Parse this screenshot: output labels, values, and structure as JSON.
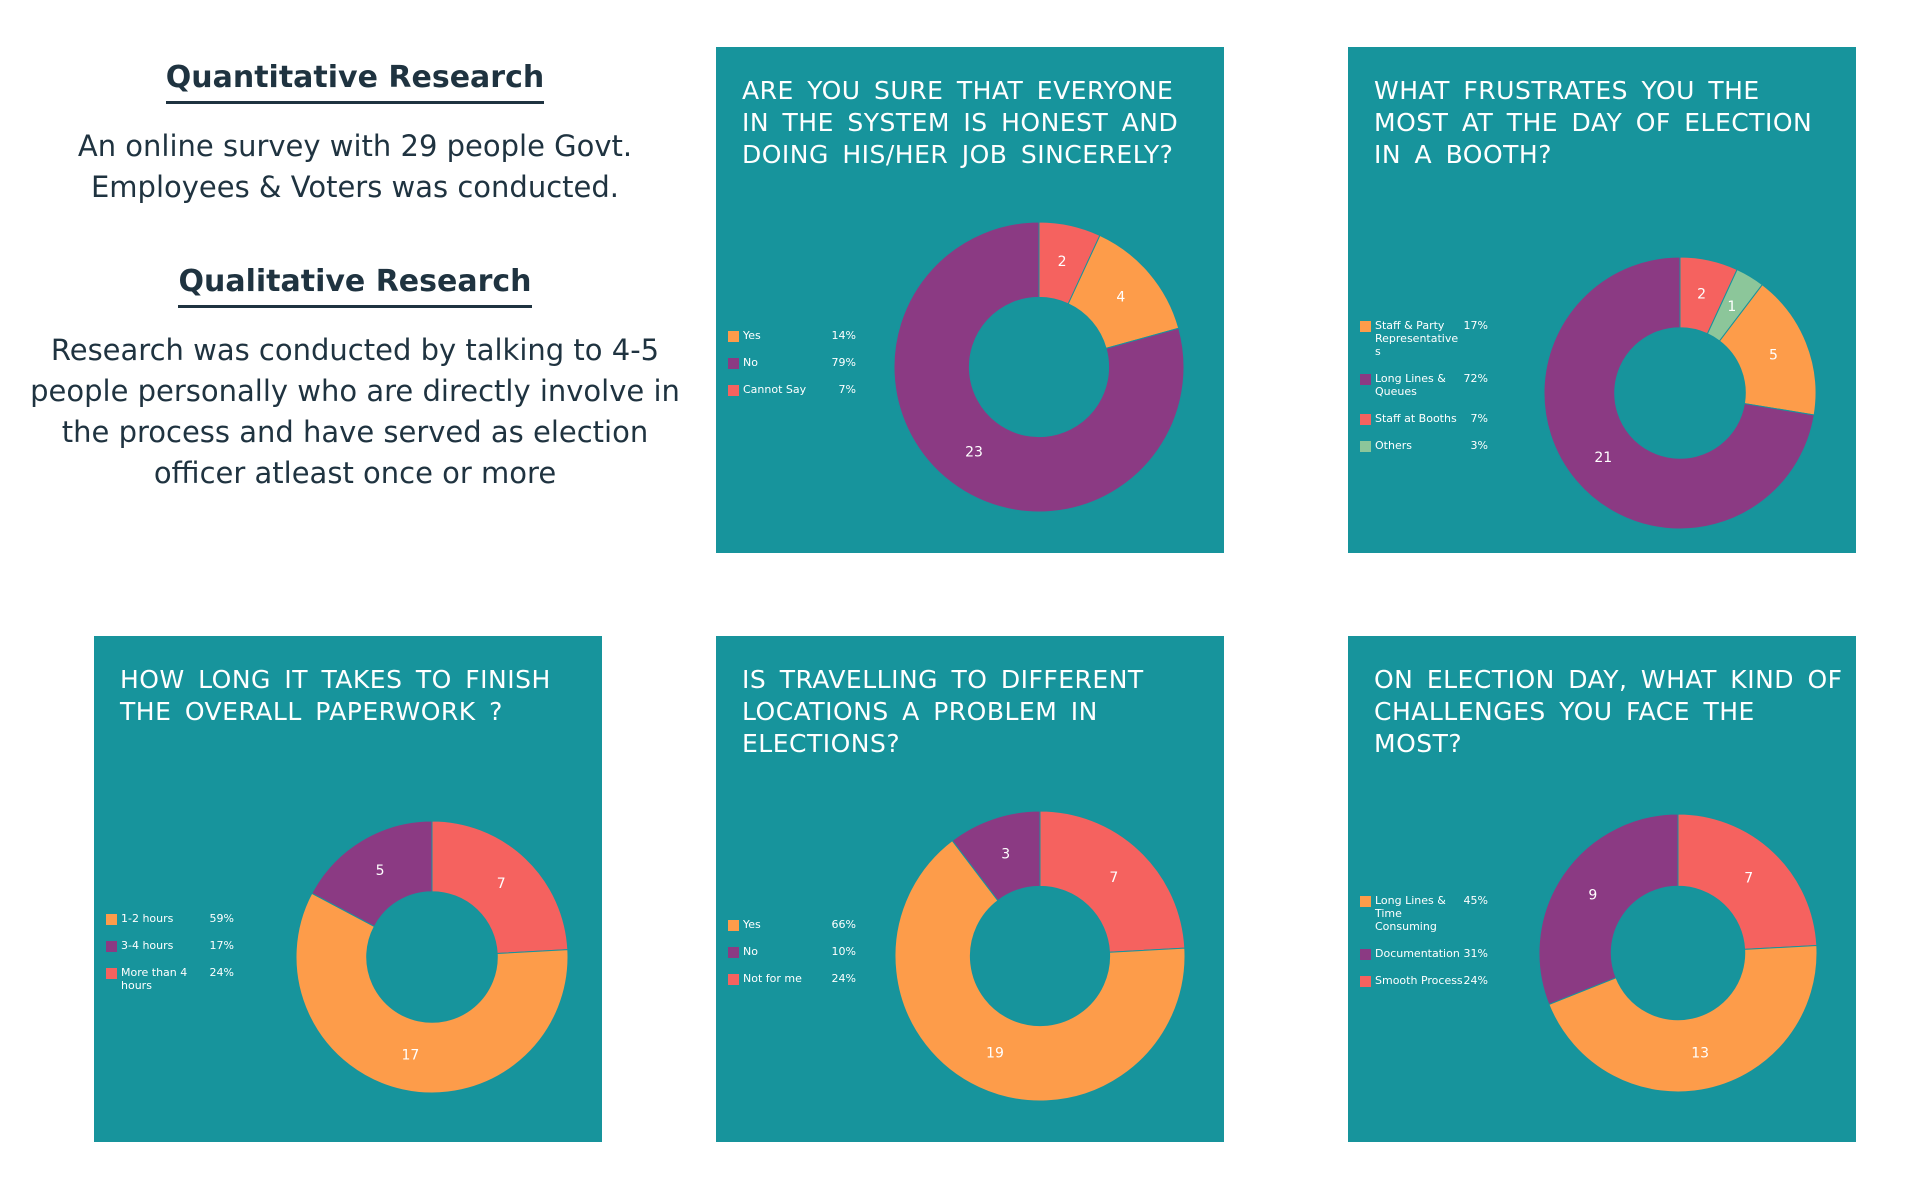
{
  "intro": {
    "quant_heading": "Quantitative Research",
    "quant_text": "An online survey with 29 people Govt. Employees & Voters was conducted.",
    "qual_heading": "Qualitative Research",
    "qual_text": "Research was conducted by talking to 4-5 people personally who are directly involve in the process and have served as election officer atleast once or more"
  },
  "chart_data": [
    {
      "type": "pie",
      "title": "ARE YOU SURE THAT EVERYONE IN THE SYSTEM IS HONEST AND DOING HIS/HER JOB SINCERELY?",
      "donut": true,
      "legend_position": "left",
      "start_angle_deg": -90,
      "slices": [
        {
          "label": "Cannot Say",
          "value": 2,
          "percent": "7%",
          "color": "#f5625f"
        },
        {
          "label": "Yes",
          "value": 4,
          "percent": "14%",
          "color": "#fd9c4a"
        },
        {
          "label": "No",
          "value": 23,
          "percent": "79%",
          "color": "#8b3a83"
        }
      ],
      "legend_order": [
        1,
        2,
        0
      ]
    },
    {
      "type": "pie",
      "title": "WHAT FRUSTRATES YOU THE MOST AT THE DAY OF ELECTION IN A BOOTH?",
      "donut": true,
      "legend_position": "left",
      "start_angle_deg": -90,
      "slices": [
        {
          "label": "Staff at Booths",
          "value": 2,
          "percent": "7%",
          "color": "#f5625f"
        },
        {
          "label": "Others",
          "value": 1,
          "percent": "3%",
          "color": "#8cc69a"
        },
        {
          "label": "Staff & Party Representative s",
          "value": 5,
          "percent": "17%",
          "color": "#fd9c4a"
        },
        {
          "label": "Long Lines & Queues",
          "value": 21,
          "percent": "72%",
          "color": "#8b3a83"
        }
      ],
      "legend_order": [
        2,
        3,
        0,
        1
      ]
    },
    {
      "type": "pie",
      "title": "HOW LONG IT TAKES TO FINISH THE OVERALL PAPERWORK ?",
      "donut": true,
      "legend_position": "left",
      "start_angle_deg": -90,
      "slices": [
        {
          "label": "More than 4 hours",
          "value": 7,
          "percent": "24%",
          "color": "#f5625f"
        },
        {
          "label": "1-2 hours",
          "value": 17,
          "percent": "59%",
          "color": "#fd9c4a"
        },
        {
          "label": "3-4 hours",
          "value": 5,
          "percent": "17%",
          "color": "#8b3a83"
        }
      ],
      "legend_order": [
        1,
        2,
        0
      ]
    },
    {
      "type": "pie",
      "title": "IS TRAVELLING TO DIFFERENT LOCATIONS A PROBLEM IN ELECTIONS?",
      "donut": true,
      "legend_position": "left",
      "start_angle_deg": -90,
      "slices": [
        {
          "label": "Not for me",
          "value": 7,
          "percent": "24%",
          "color": "#f5625f"
        },
        {
          "label": "Yes",
          "value": 19,
          "percent": "66%",
          "color": "#fd9c4a"
        },
        {
          "label": "No",
          "value": 3,
          "percent": "10%",
          "color": "#8b3a83"
        }
      ],
      "legend_order": [
        1,
        2,
        0
      ]
    },
    {
      "type": "pie",
      "title": "ON ELECTION DAY, WHAT KIND OF CHALLENGES YOU FACE THE MOST?",
      "donut": true,
      "legend_position": "left",
      "start_angle_deg": -90,
      "slices": [
        {
          "label": "Smooth Process",
          "value": 7,
          "percent": "24%",
          "color": "#f5625f"
        },
        {
          "label": "Long Lines & Time Consuming",
          "value": 13,
          "percent": "45%",
          "color": "#fd9c4a"
        },
        {
          "label": "Documentation",
          "value": 9,
          "percent": "31%",
          "color": "#8b3a83"
        }
      ],
      "legend_order": [
        1,
        2,
        0
      ]
    }
  ]
}
